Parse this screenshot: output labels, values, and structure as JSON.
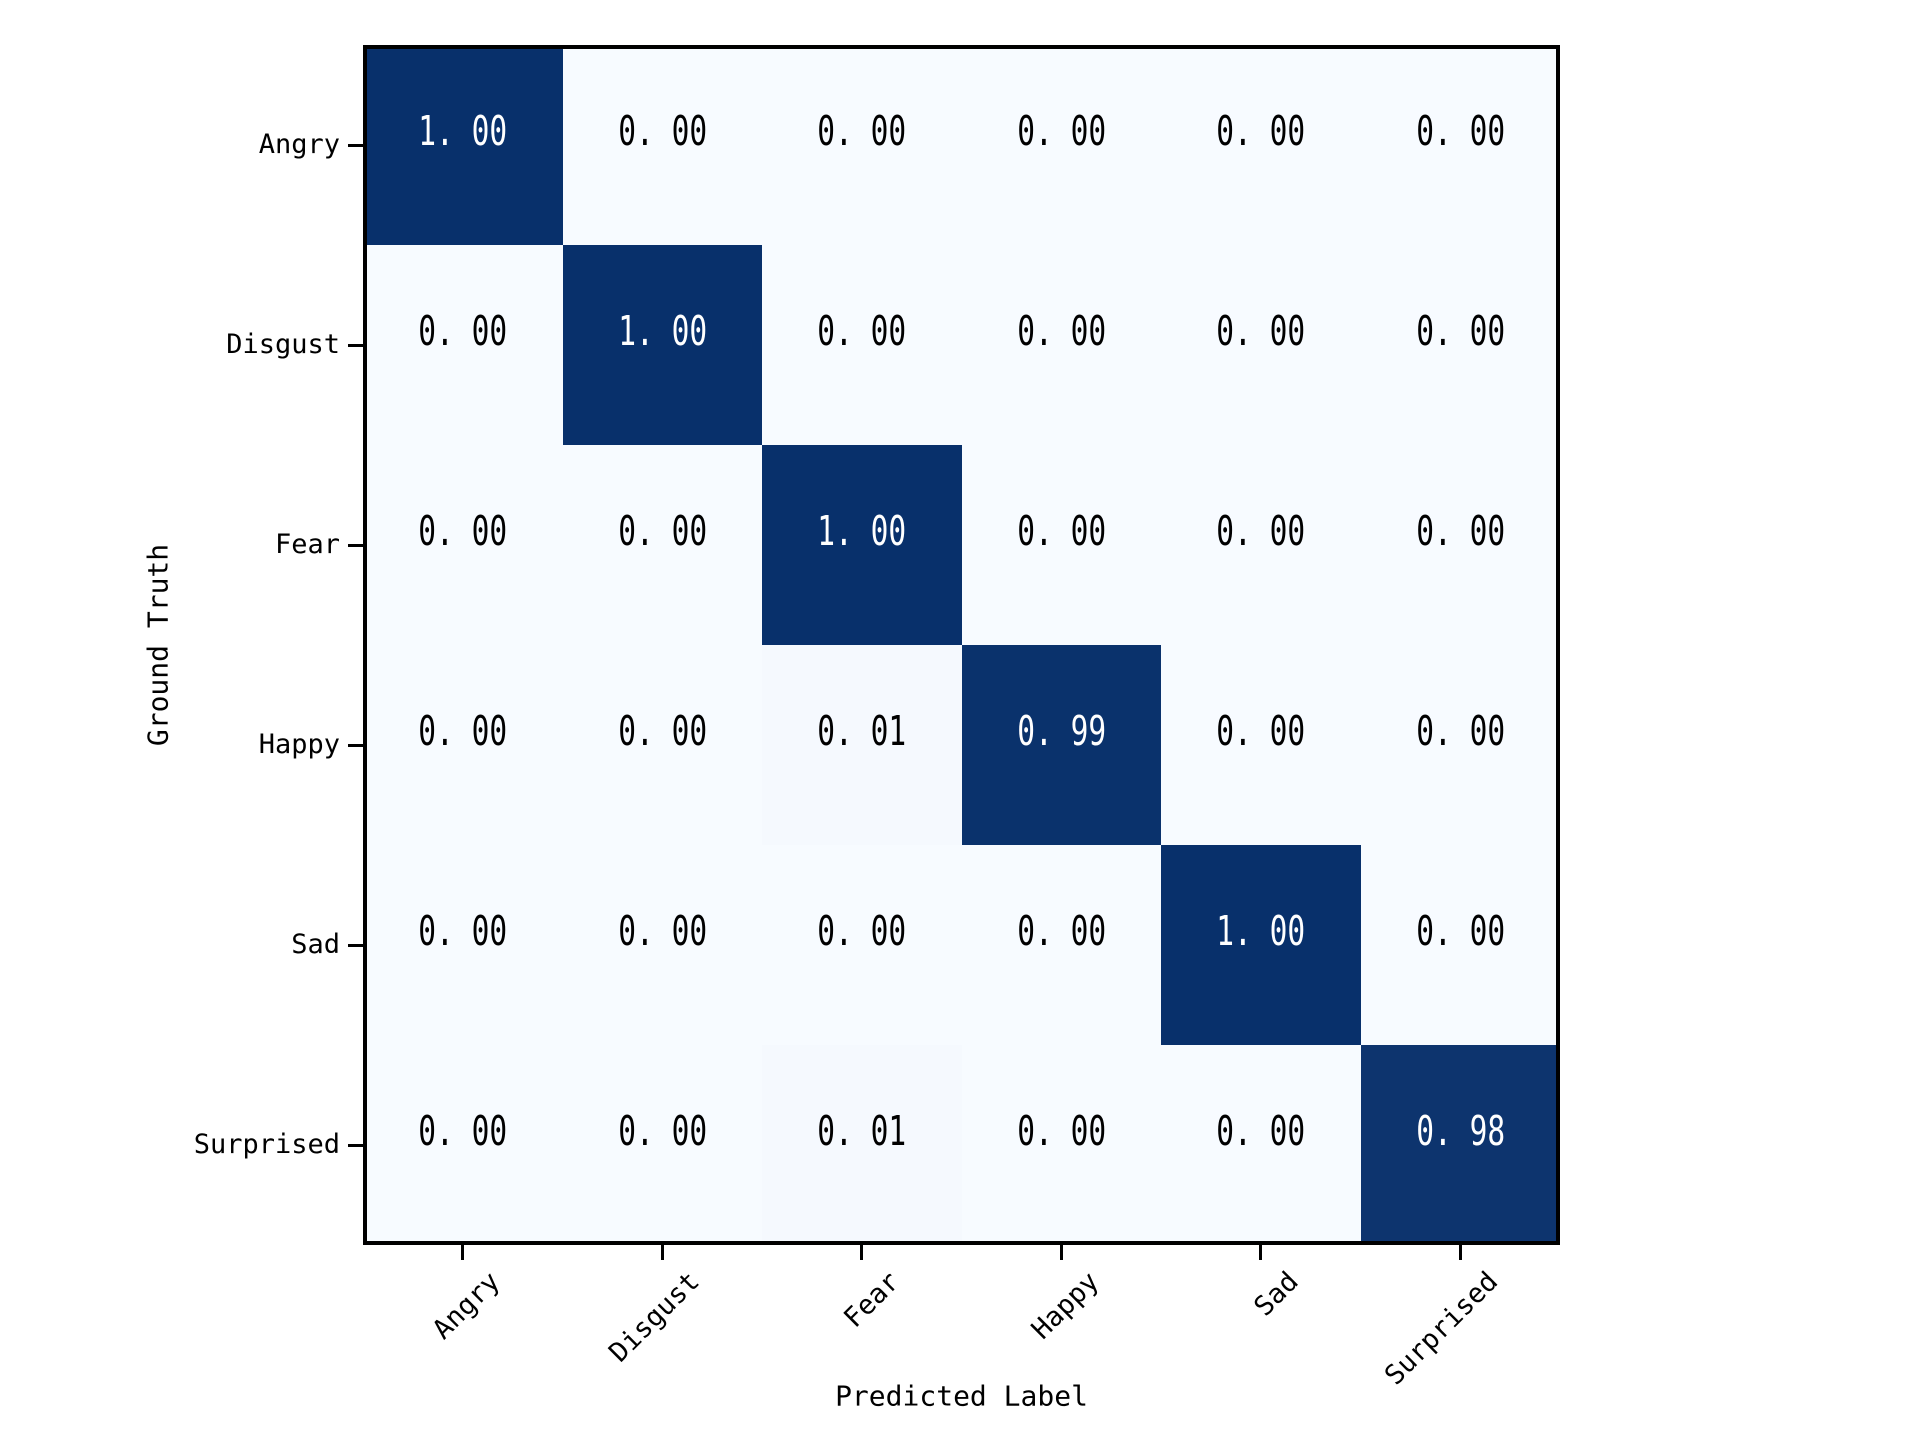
{
  "chart_data": {
    "type": "heatmap",
    "subtype": "confusion-matrix",
    "title": "",
    "xlabel": "Predicted Label",
    "ylabel": "Ground Truth",
    "categories": [
      "Angry",
      "Disgust",
      "Fear",
      "Happy",
      "Sad",
      "Surprised"
    ],
    "x_tick_labels": [
      "Angry",
      "Disgust",
      "Fear",
      "Happy",
      "Sad",
      "Surprised"
    ],
    "y_tick_labels": [
      "Angry",
      "Disgust",
      "Fear",
      "Happy",
      "Sad",
      "Surprised"
    ],
    "matrix": [
      [
        1.0,
        0.0,
        0.0,
        0.0,
        0.0,
        0.0
      ],
      [
        0.0,
        1.0,
        0.0,
        0.0,
        0.0,
        0.0
      ],
      [
        0.0,
        0.0,
        1.0,
        0.0,
        0.0,
        0.0
      ],
      [
        0.0,
        0.0,
        0.01,
        0.99,
        0.0,
        0.0
      ],
      [
        0.0,
        0.0,
        0.0,
        0.0,
        1.0,
        0.0
      ],
      [
        0.0,
        0.0,
        0.01,
        0.0,
        0.0,
        0.98
      ]
    ],
    "cell_labels": [
      [
        "1.00",
        "0.00",
        "0.00",
        "0.00",
        "0.00",
        "0.00"
      ],
      [
        "0.00",
        "1.00",
        "0.00",
        "0.00",
        "0.00",
        "0.00"
      ],
      [
        "0.00",
        "0.00",
        "1.00",
        "0.00",
        "0.00",
        "0.00"
      ],
      [
        "0.00",
        "0.00",
        "0.01",
        "0.99",
        "0.00",
        "0.00"
      ],
      [
        "0.00",
        "0.00",
        "0.00",
        "0.00",
        "1.00",
        "0.00"
      ],
      [
        "0.00",
        "0.00",
        "0.01",
        "0.00",
        "0.00",
        "0.98"
      ]
    ],
    "vmin": 0,
    "vmax": 1,
    "grid": false,
    "legend": "none",
    "colors": {
      "colormap_name": "Blues",
      "cmap_min": "#f7fbff",
      "cmap_max": "#08306b",
      "text_on_light": "#000000",
      "text_on_dark": "#ffffff",
      "axis_line": "#000000",
      "figure_background": "#ffffff"
    }
  }
}
